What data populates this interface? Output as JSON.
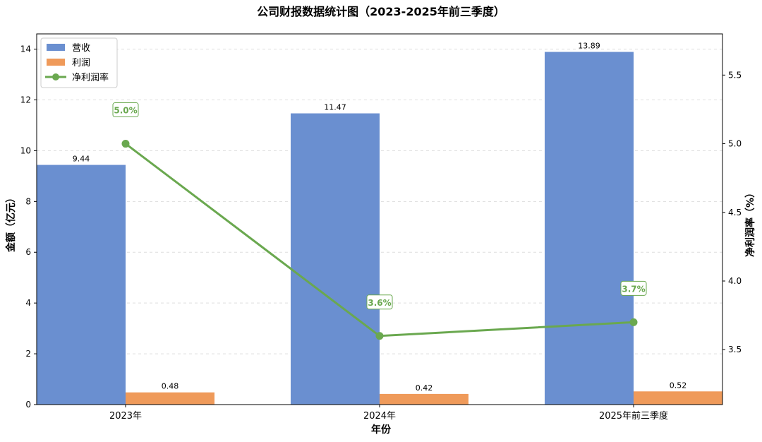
{
  "chart_data": {
    "type": "bar",
    "title": "公司财报数据统计图（2023-2025年前三季度）",
    "xlabel": "年份",
    "ylabel": "金额（亿元）",
    "y2label": "净利润率（%）",
    "categories": [
      "2023年",
      "2024年",
      "2025年前三季度"
    ],
    "ylim": [
      0,
      14.6
    ],
    "yticks": [
      0,
      2,
      4,
      6,
      8,
      10,
      12,
      14
    ],
    "y2lim": [
      3.1,
      5.8
    ],
    "y2ticks": [
      3.5,
      4.0,
      4.5,
      5.0,
      5.5
    ],
    "grid": true,
    "legend_position": "top-left",
    "series": [
      {
        "name": "营收",
        "type": "bar",
        "axis": "left",
        "color": "#6a8fd0",
        "values": [
          9.44,
          11.47,
          13.89
        ],
        "labels": [
          "9.44",
          "11.47",
          "13.89"
        ]
      },
      {
        "name": "利润",
        "type": "bar",
        "axis": "left",
        "color": "#ef9a5a",
        "values": [
          0.48,
          0.42,
          0.52
        ],
        "labels": [
          "0.48",
          "0.42",
          "0.52"
        ]
      },
      {
        "name": "净利润率",
        "type": "line",
        "axis": "right",
        "color": "#6aa84f",
        "values": [
          5.0,
          3.6,
          3.7
        ],
        "labels": [
          "5.0%",
          "3.6%",
          "3.7%"
        ]
      }
    ]
  }
}
